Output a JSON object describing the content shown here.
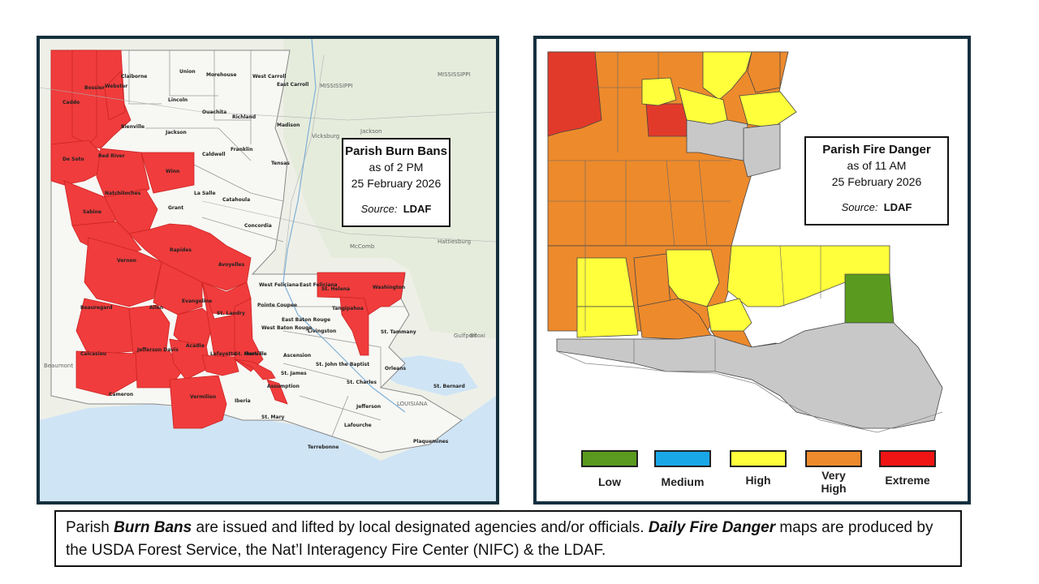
{
  "left_map": {
    "title": "Parish Burn Bans",
    "line1": "as of 2 PM",
    "line2": "25 February 2026",
    "source_label": "Source:",
    "source_value": "LDAF",
    "ban_color": "#f03c3c",
    "parish_labels": [
      "Caddo",
      "Bossier",
      "Webster",
      "Claiborne",
      "Union",
      "Morehouse",
      "West Carroll",
      "East Carroll",
      "Lincoln",
      "Ouachita",
      "Richland",
      "Madison",
      "Bienville",
      "Jackson",
      "Caldwell",
      "Franklin",
      "Tensas",
      "De Soto",
      "Red River",
      "Winn",
      "Natchitoches",
      "La Salle",
      "Catahoula",
      "Sabine",
      "Grant",
      "Concordia",
      "Vernon",
      "Rapides",
      "Avoyelles",
      "Beauregard",
      "Allen",
      "Evangeline",
      "St. Landry",
      "Calcasieu",
      "Jefferson Davis",
      "Acadia",
      "Lafayette",
      "St. Martin",
      "Cameron",
      "Vermilion",
      "Iberia",
      "Pointe Coupee",
      "West Feliciana",
      "East Feliciana",
      "St. Helena",
      "Washington",
      "Tangipahoa",
      "St. Tammany",
      "East Baton Rouge",
      "West Baton Rouge",
      "Livingston",
      "Iberville",
      "Ascension",
      "Assumption",
      "St. James",
      "St. John the Baptist",
      "St. Charles",
      "Orleans",
      "St. Bernard",
      "Jefferson",
      "Lafourche",
      "Terrebonne",
      "St. Mary",
      "Plaquemines"
    ]
  },
  "right_map": {
    "title": "Parish Fire Danger",
    "line1": "as of 11 AM",
    "line2": "25 February 2026",
    "source_label": "Source:",
    "source_value": "LDAF",
    "legend": [
      {
        "label": "Low",
        "color": "#5a9a1e"
      },
      {
        "label": "Medium",
        "color": "#1aa7e8"
      },
      {
        "label": "High",
        "color": "#ffff3c"
      },
      {
        "label": "Very High",
        "color": "#ed8a2c"
      },
      {
        "label": "Extreme",
        "color": "#f01414"
      }
    ],
    "no_data_color": "#c8c8c8"
  },
  "footer": {
    "p1": "Parish ",
    "b1": "Burn Bans",
    "p2": " are issued and lifted by local designated agencies and/or officials.  ",
    "b2": "Daily Fire Danger",
    "p3": " maps are produced by the USDA Forest Service, the Nat’l Interagency Fire Center (NIFC) & the LDAF."
  }
}
